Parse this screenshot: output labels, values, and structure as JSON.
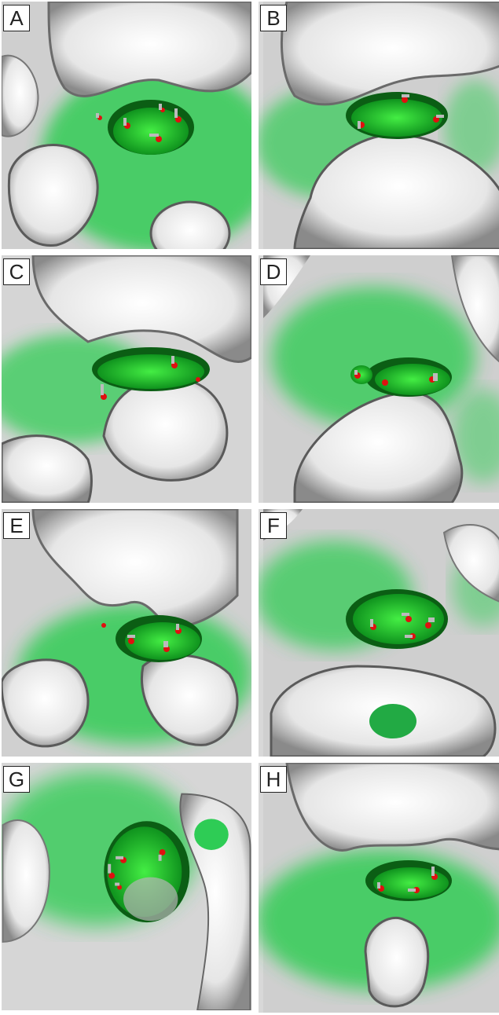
{
  "panels": [
    {
      "label": "A",
      "pocket_color": "#22cc33",
      "shadow_color": "#0a7a15"
    },
    {
      "label": "B",
      "pocket_color": "#22cc33",
      "shadow_color": "#0a7a15"
    },
    {
      "label": "C",
      "pocket_color": "#22cc33",
      "shadow_color": "#0a7a15"
    },
    {
      "label": "D",
      "pocket_color": "#22cc33",
      "shadow_color": "#0a7a15"
    },
    {
      "label": "E",
      "pocket_color": "#22cc33",
      "shadow_color": "#0a7a15"
    },
    {
      "label": "F",
      "pocket_color": "#22cc33",
      "shadow_color": "#0a7a15"
    },
    {
      "label": "G",
      "pocket_color": "#22cc33",
      "shadow_color": "#0a7a15"
    },
    {
      "label": "H",
      "pocket_color": "#22cc33",
      "shadow_color": "#0a7a15"
    }
  ],
  "colors": {
    "surface_white": "#f2f2f2",
    "surface_shadow": "#555555",
    "hydrophobic_green": "#33dd55",
    "oxygen_red": "#e01010",
    "hydrogen_gray": "#bdbdbd"
  }
}
